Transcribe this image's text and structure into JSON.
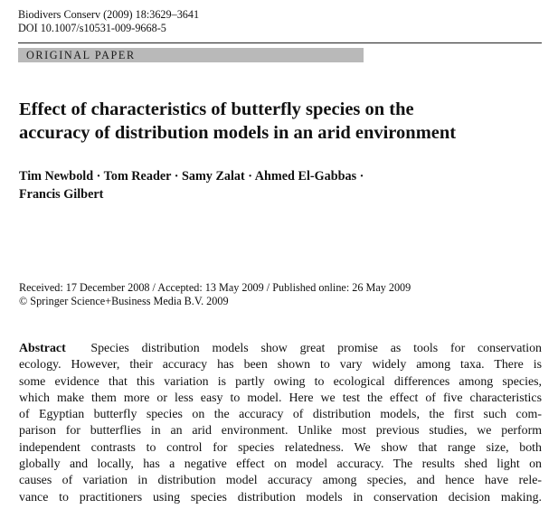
{
  "header": {
    "journal_ref": "Biodivers Conserv (2009) 18:3629–3641",
    "doi": "DOI 10.1007/s10531-009-9668-5"
  },
  "section_label": "ORIGINAL PAPER",
  "title_lines": [
    "Effect of characteristics of butterfly species on the",
    "accuracy of distribution models in an arid environment"
  ],
  "author_lines": [
    "Tim Newbold · Tom Reader · Samy Zalat · Ahmed El-Gabbas ·",
    "Francis Gilbert"
  ],
  "dates": {
    "history": "Received: 17 December 2008 / Accepted: 13 May 2009 / Published online: 26 May 2009",
    "copyright": "© Springer Science+Business Media B.V. 2009"
  },
  "abstract": {
    "heading": "Abstract",
    "first_line_rest": "Species distribution models show great promise as tools for conservation",
    "lines": [
      "ecology. However, their accuracy has been shown to vary widely among taxa. There is",
      "some evidence that this variation is partly owing to ecological differences among species,",
      "which make them more or less easy to model. Here we test the effect of five characteristics",
      "of Egyptian butterfly species on the accuracy of distribution models, the first such com-",
      "parison for butterflies in an arid environment. Unlike most previous studies, we perform",
      "independent contrasts to control for species relatedness. We show that range size, both",
      "globally and locally, has a negative effect on model accuracy. The results shed light on",
      "causes of variation in distribution model accuracy among species, and hence have rele-",
      "vance to practitioners using species distribution models in conservation decision making."
    ]
  }
}
